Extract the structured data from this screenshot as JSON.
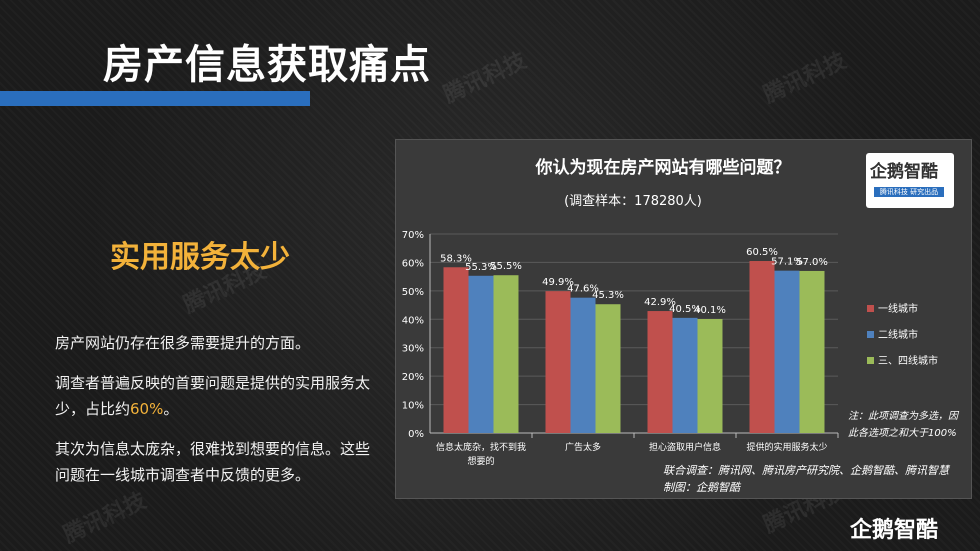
{
  "watermark": "腾讯科技",
  "page": {
    "title": "房产信息获取痛点",
    "subtitle": "实用服务太少",
    "paragraphs": [
      "房产网站仍存在很多需要提升的方面。",
      "调查者普遍反映的首要问题是提供的实用服务太少，占比约",
      "其次为信息太庞杂，很难找到想要的信息。这些问题在一线城市调查者中反馈的更多。"
    ],
    "highlight": "60%",
    "paragraph2_end": "。"
  },
  "logo": {
    "name": "企鹅智酷",
    "tagline": "腾讯科技 研究出品"
  },
  "chart_data": {
    "type": "bar",
    "title": "你认为现在房产网站有哪些问题？",
    "subtitle": "(调查样本：178280人)",
    "categories": [
      [
        "信息太庞杂，找不到我",
        "想要的"
      ],
      [
        "广告太多"
      ],
      [
        "担心盗取用户信息"
      ],
      [
        "提供的实用服务太少"
      ]
    ],
    "series": [
      {
        "name": "一线城市",
        "color": "#c0504d",
        "values": [
          58.3,
          49.9,
          42.9,
          60.5
        ]
      },
      {
        "name": "二线城市",
        "color": "#4f81bd",
        "values": [
          55.3,
          47.6,
          40.5,
          57.1
        ]
      },
      {
        "name": "三、四线城市",
        "color": "#9bbb59",
        "values": [
          55.5,
          45.3,
          40.1,
          57.0
        ]
      }
    ],
    "yticks": [
      "0%",
      "10%",
      "20%",
      "30%",
      "40%",
      "50%",
      "60%",
      "70%"
    ],
    "ylim": [
      0,
      70
    ],
    "grid": true,
    "legend": "right",
    "note": [
      "注：此项调查为多选，因",
      "此各选项之和大于100%"
    ],
    "source": "联合调查：腾讯网、腾讯房产研究院、企鹅智酷、腾讯智慧",
    "credit": "制图：企鹅智酷"
  }
}
